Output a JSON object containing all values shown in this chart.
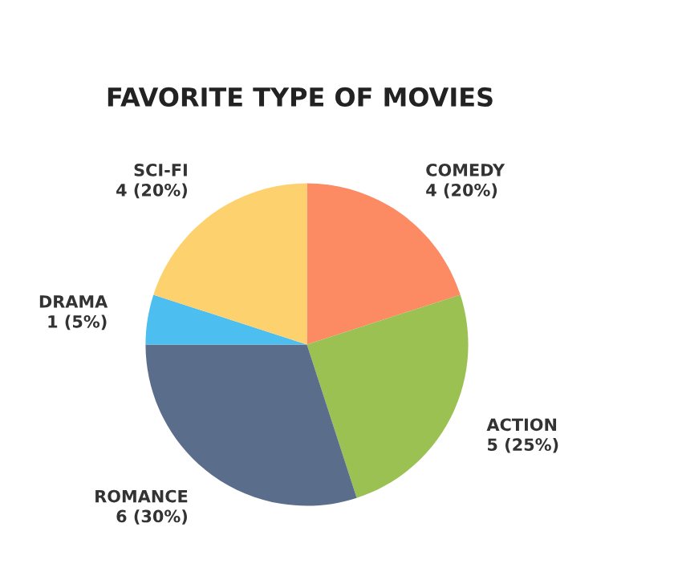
{
  "chart_data": {
    "type": "pie",
    "title": "FAVORITE TYPE OF MOVIES",
    "categories": [
      "COMEDY",
      "ACTION",
      "ROMANCE",
      "DRAMA",
      "SCI-FI"
    ],
    "values": [
      4,
      5,
      6,
      1,
      4
    ],
    "value_labels": [
      "4 (20%)",
      "5 (25%)",
      "6 (30%)",
      "1 (5%)",
      "4 (20%)"
    ],
    "colors": [
      "#fc8a63",
      "#9bc153",
      "#5a6e8c",
      "#4cbef0",
      "#fdd16e"
    ]
  }
}
